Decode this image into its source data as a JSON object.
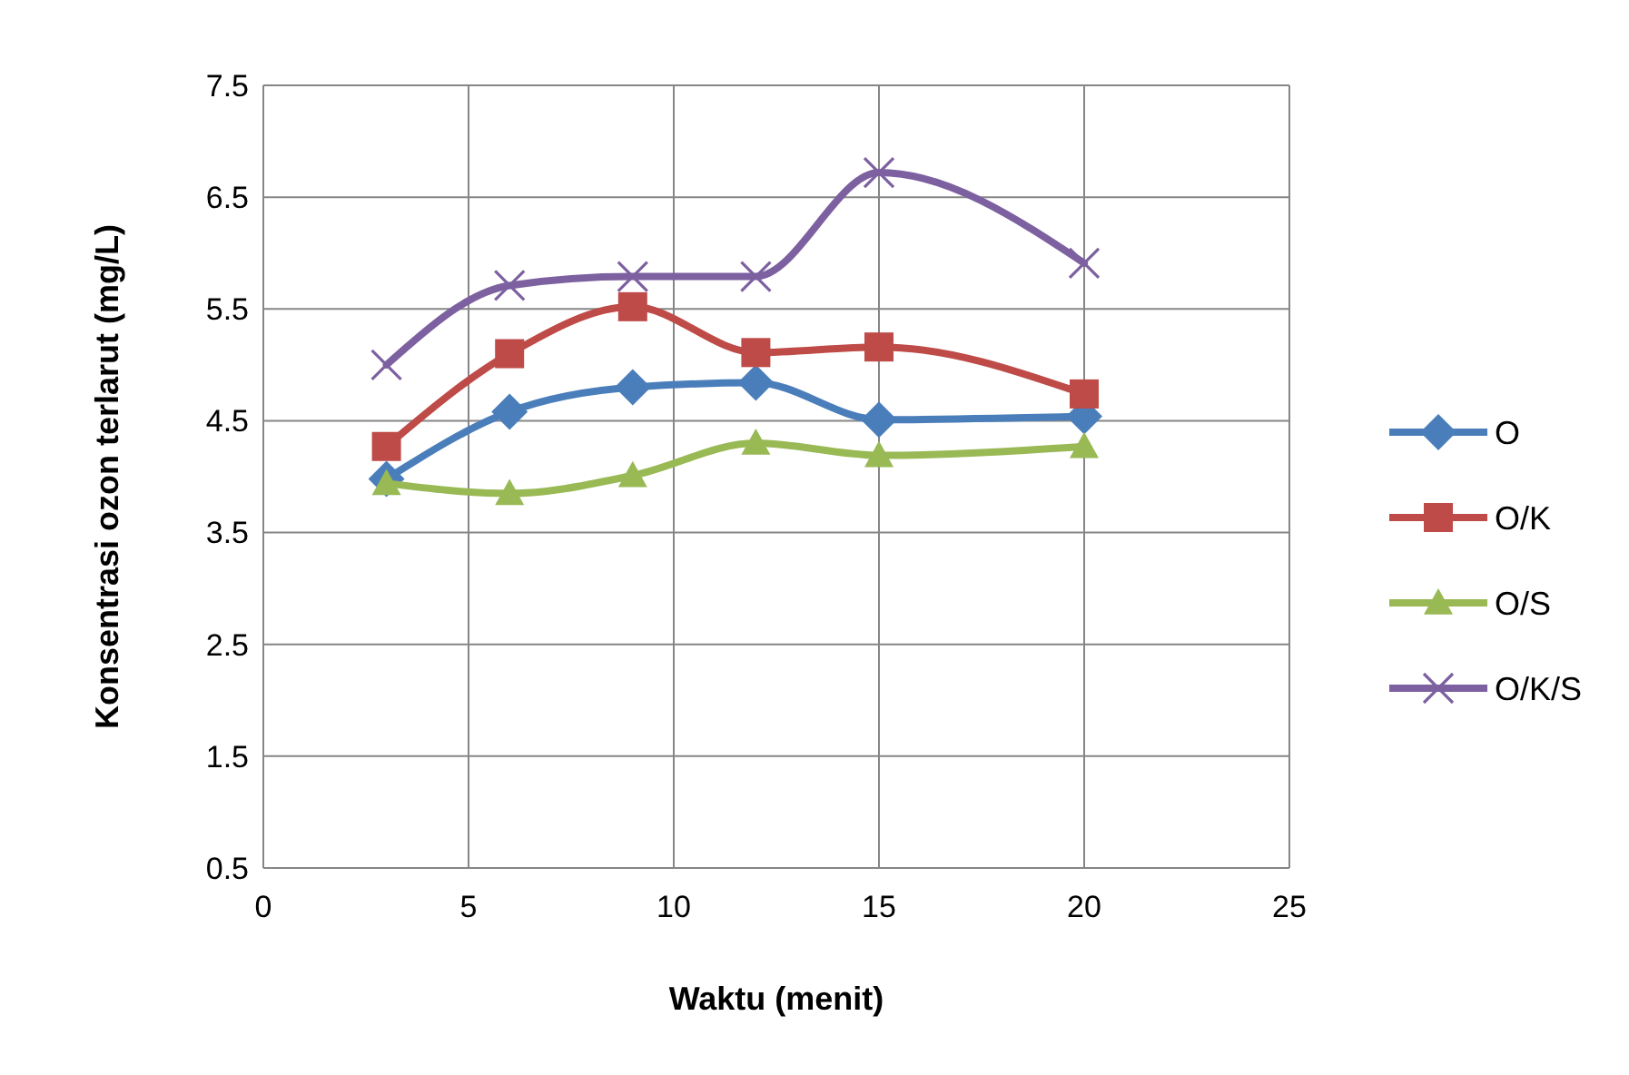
{
  "chart_data": {
    "type": "line",
    "xlabel": "Waktu (menit)",
    "ylabel": "Konsentrasi ozon terlarut (mg/L)",
    "x": [
      3,
      6,
      9,
      12,
      15,
      20
    ],
    "xlim": [
      0,
      25
    ],
    "xticks": [
      0,
      5,
      10,
      15,
      20,
      25
    ],
    "ylim": [
      0.5,
      7.5
    ],
    "yticks": [
      0.5,
      1.5,
      2.5,
      3.5,
      4.5,
      5.5,
      6.5,
      7.5
    ],
    "grid": true,
    "legend": "right",
    "series": [
      {
        "name": "O",
        "color": "#4a7ebb",
        "marker": "diamond",
        "values": [
          3.98,
          4.58,
          4.8,
          4.84,
          4.51,
          4.54
        ]
      },
      {
        "name": "O/K",
        "color": "#be4b48",
        "marker": "square",
        "values": [
          4.27,
          5.1,
          5.52,
          5.11,
          5.16,
          4.74
        ]
      },
      {
        "name": "O/S",
        "color": "#98b954",
        "marker": "triangle",
        "values": [
          3.94,
          3.85,
          4.01,
          4.3,
          4.19,
          4.27
        ]
      },
      {
        "name": "O/K/S",
        "color": "#7d60a0",
        "marker": "cross",
        "values": [
          5.0,
          5.71,
          5.79,
          5.79,
          6.72,
          5.91
        ]
      }
    ]
  }
}
